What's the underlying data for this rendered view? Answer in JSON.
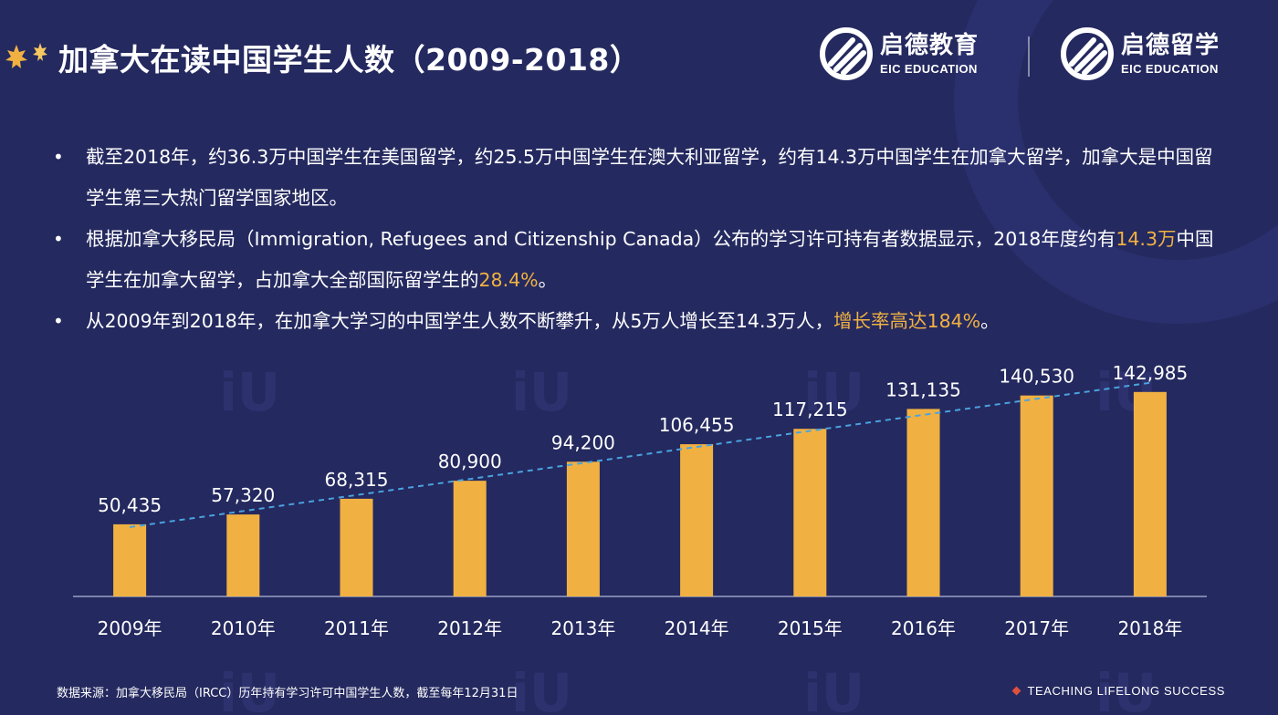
{
  "header": {
    "title": "加拿大在读中国学生人数（2009-2018）",
    "brands": [
      {
        "name_cn": "启德教育",
        "name_en": "EIC EDUCATION"
      },
      {
        "name_cn": "启德留学",
        "name_en": "EIC EDUCATION"
      }
    ]
  },
  "bullets": [
    {
      "parts": [
        {
          "text": "截至2018年，约36.3万中国学生在美国留学，约25.5万中国学生在澳大利亚留学，约有14.3万中国学生在加拿大留学，加拿大是中国留学生第三大热门留学国家地区。",
          "hl": false
        }
      ]
    },
    {
      "parts": [
        {
          "text": "根据加拿大移民局（Immigration, Refugees and Citizenship Canada）公布的学习许可持有者数据显示，2018年度约有",
          "hl": false
        },
        {
          "text": "14.3万",
          "hl": true
        },
        {
          "text": "中国学生在加拿大留学，占加拿大全部国际留学生的",
          "hl": false
        },
        {
          "text": "28.4%",
          "hl": true
        },
        {
          "text": "。",
          "hl": false
        }
      ]
    },
    {
      "parts": [
        {
          "text": "从2009年到2018年，在加拿大学习的中国学生人数不断攀升，从5万人增长至14.3万人，",
          "hl": false
        },
        {
          "text": "增长率高达184%",
          "hl": true
        },
        {
          "text": "。",
          "hl": false
        }
      ]
    }
  ],
  "bullet_symbol": "•",
  "chart_data": {
    "type": "bar",
    "title": "加拿大在读中国学生人数（2009-2018）",
    "categories": [
      "2009年",
      "2010年",
      "2011年",
      "2012年",
      "2013年",
      "2014年",
      "2015年",
      "2016年",
      "2017年",
      "2018年"
    ],
    "values": [
      50435,
      57320,
      68315,
      80900,
      94200,
      106455,
      117215,
      131135,
      140530,
      142985
    ],
    "value_labels": [
      "50,435",
      "57,320",
      "68,315",
      "80,900",
      "94,200",
      "106,455",
      "117,215",
      "131,135",
      "140,530",
      "142,985"
    ],
    "ylim": [
      0,
      160000
    ],
    "trendline": "linear, dashed",
    "grid": false,
    "xlabel": "",
    "ylabel": ""
  },
  "footer": {
    "source": "数据来源：加拿大移民局（IRCC）历年持有学习许可中国学生人数，截至每年12月31日",
    "slogan": "TEACHING  LIFELONG  SUCCESS"
  },
  "colors": {
    "background": "#24295f",
    "bar": "#f1b142",
    "highlight": "#f1b142",
    "trendline": "#4aa3df",
    "axis": "#9aa0c4"
  },
  "icons": [
    "maple-leaf-icon",
    "eic-logo-icon"
  ]
}
